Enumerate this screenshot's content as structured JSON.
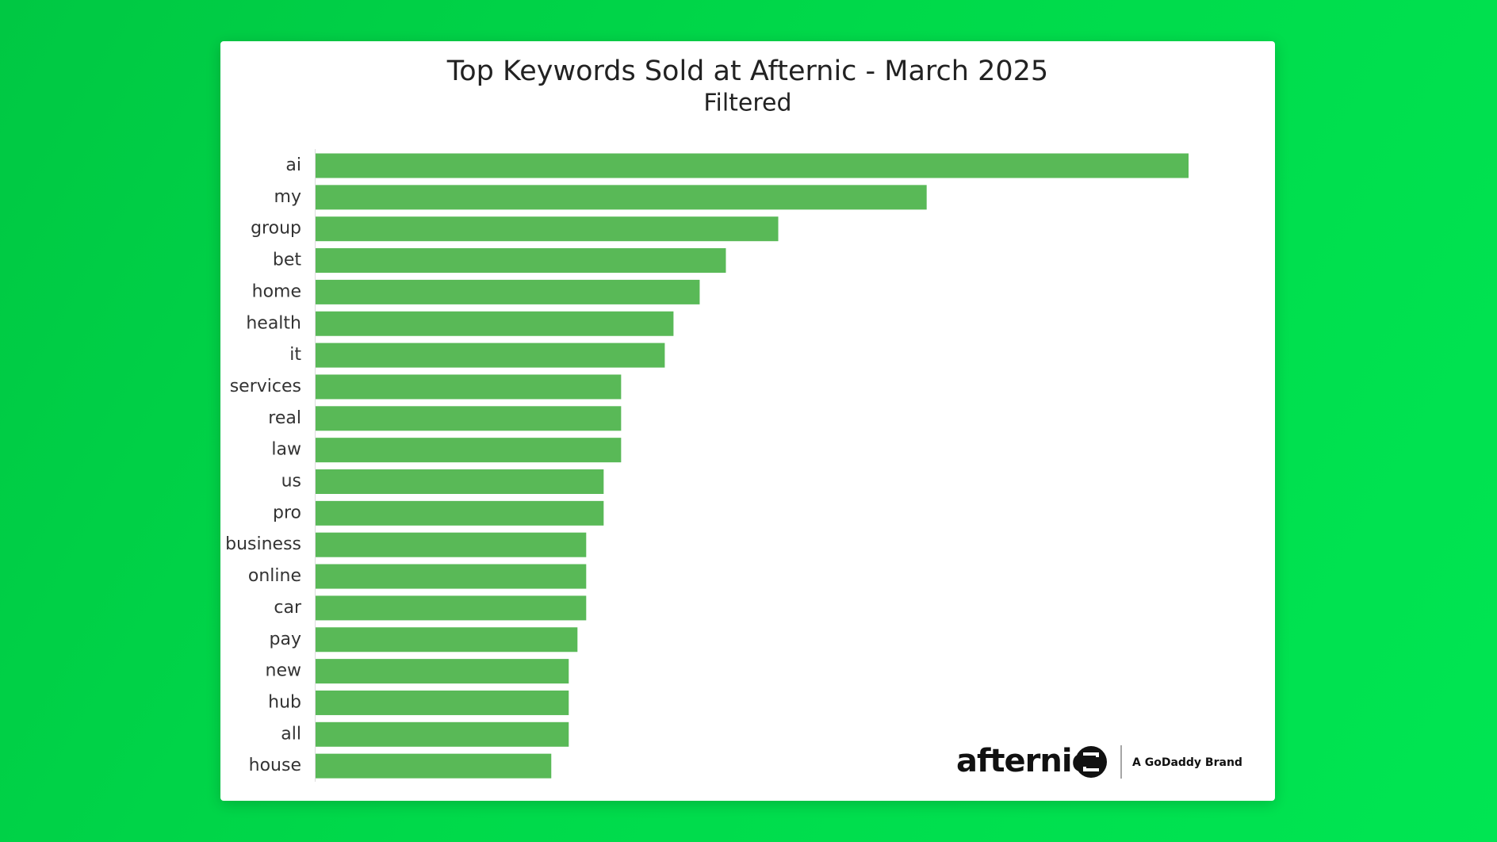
{
  "chart_data": {
    "type": "hbar",
    "title": "Top Keywords Sold at Afternic - March 2025",
    "subtitle": "Filtered",
    "categories": [
      "ai",
      "my",
      "group",
      "bet",
      "home",
      "health",
      "it",
      "services",
      "real",
      "law",
      "us",
      "pro",
      "business",
      "online",
      "car",
      "pay",
      "new",
      "hub",
      "all",
      "house"
    ],
    "values": [
      100,
      70,
      53,
      47,
      44,
      41,
      40,
      35,
      35,
      35,
      33,
      33,
      31,
      31,
      31,
      30,
      29,
      29,
      29,
      27
    ],
    "color": "#59b957",
    "xlim": [
      0,
      100
    ]
  },
  "brand": {
    "name": "afternic",
    "tagline": "A GoDaddy Brand"
  }
}
